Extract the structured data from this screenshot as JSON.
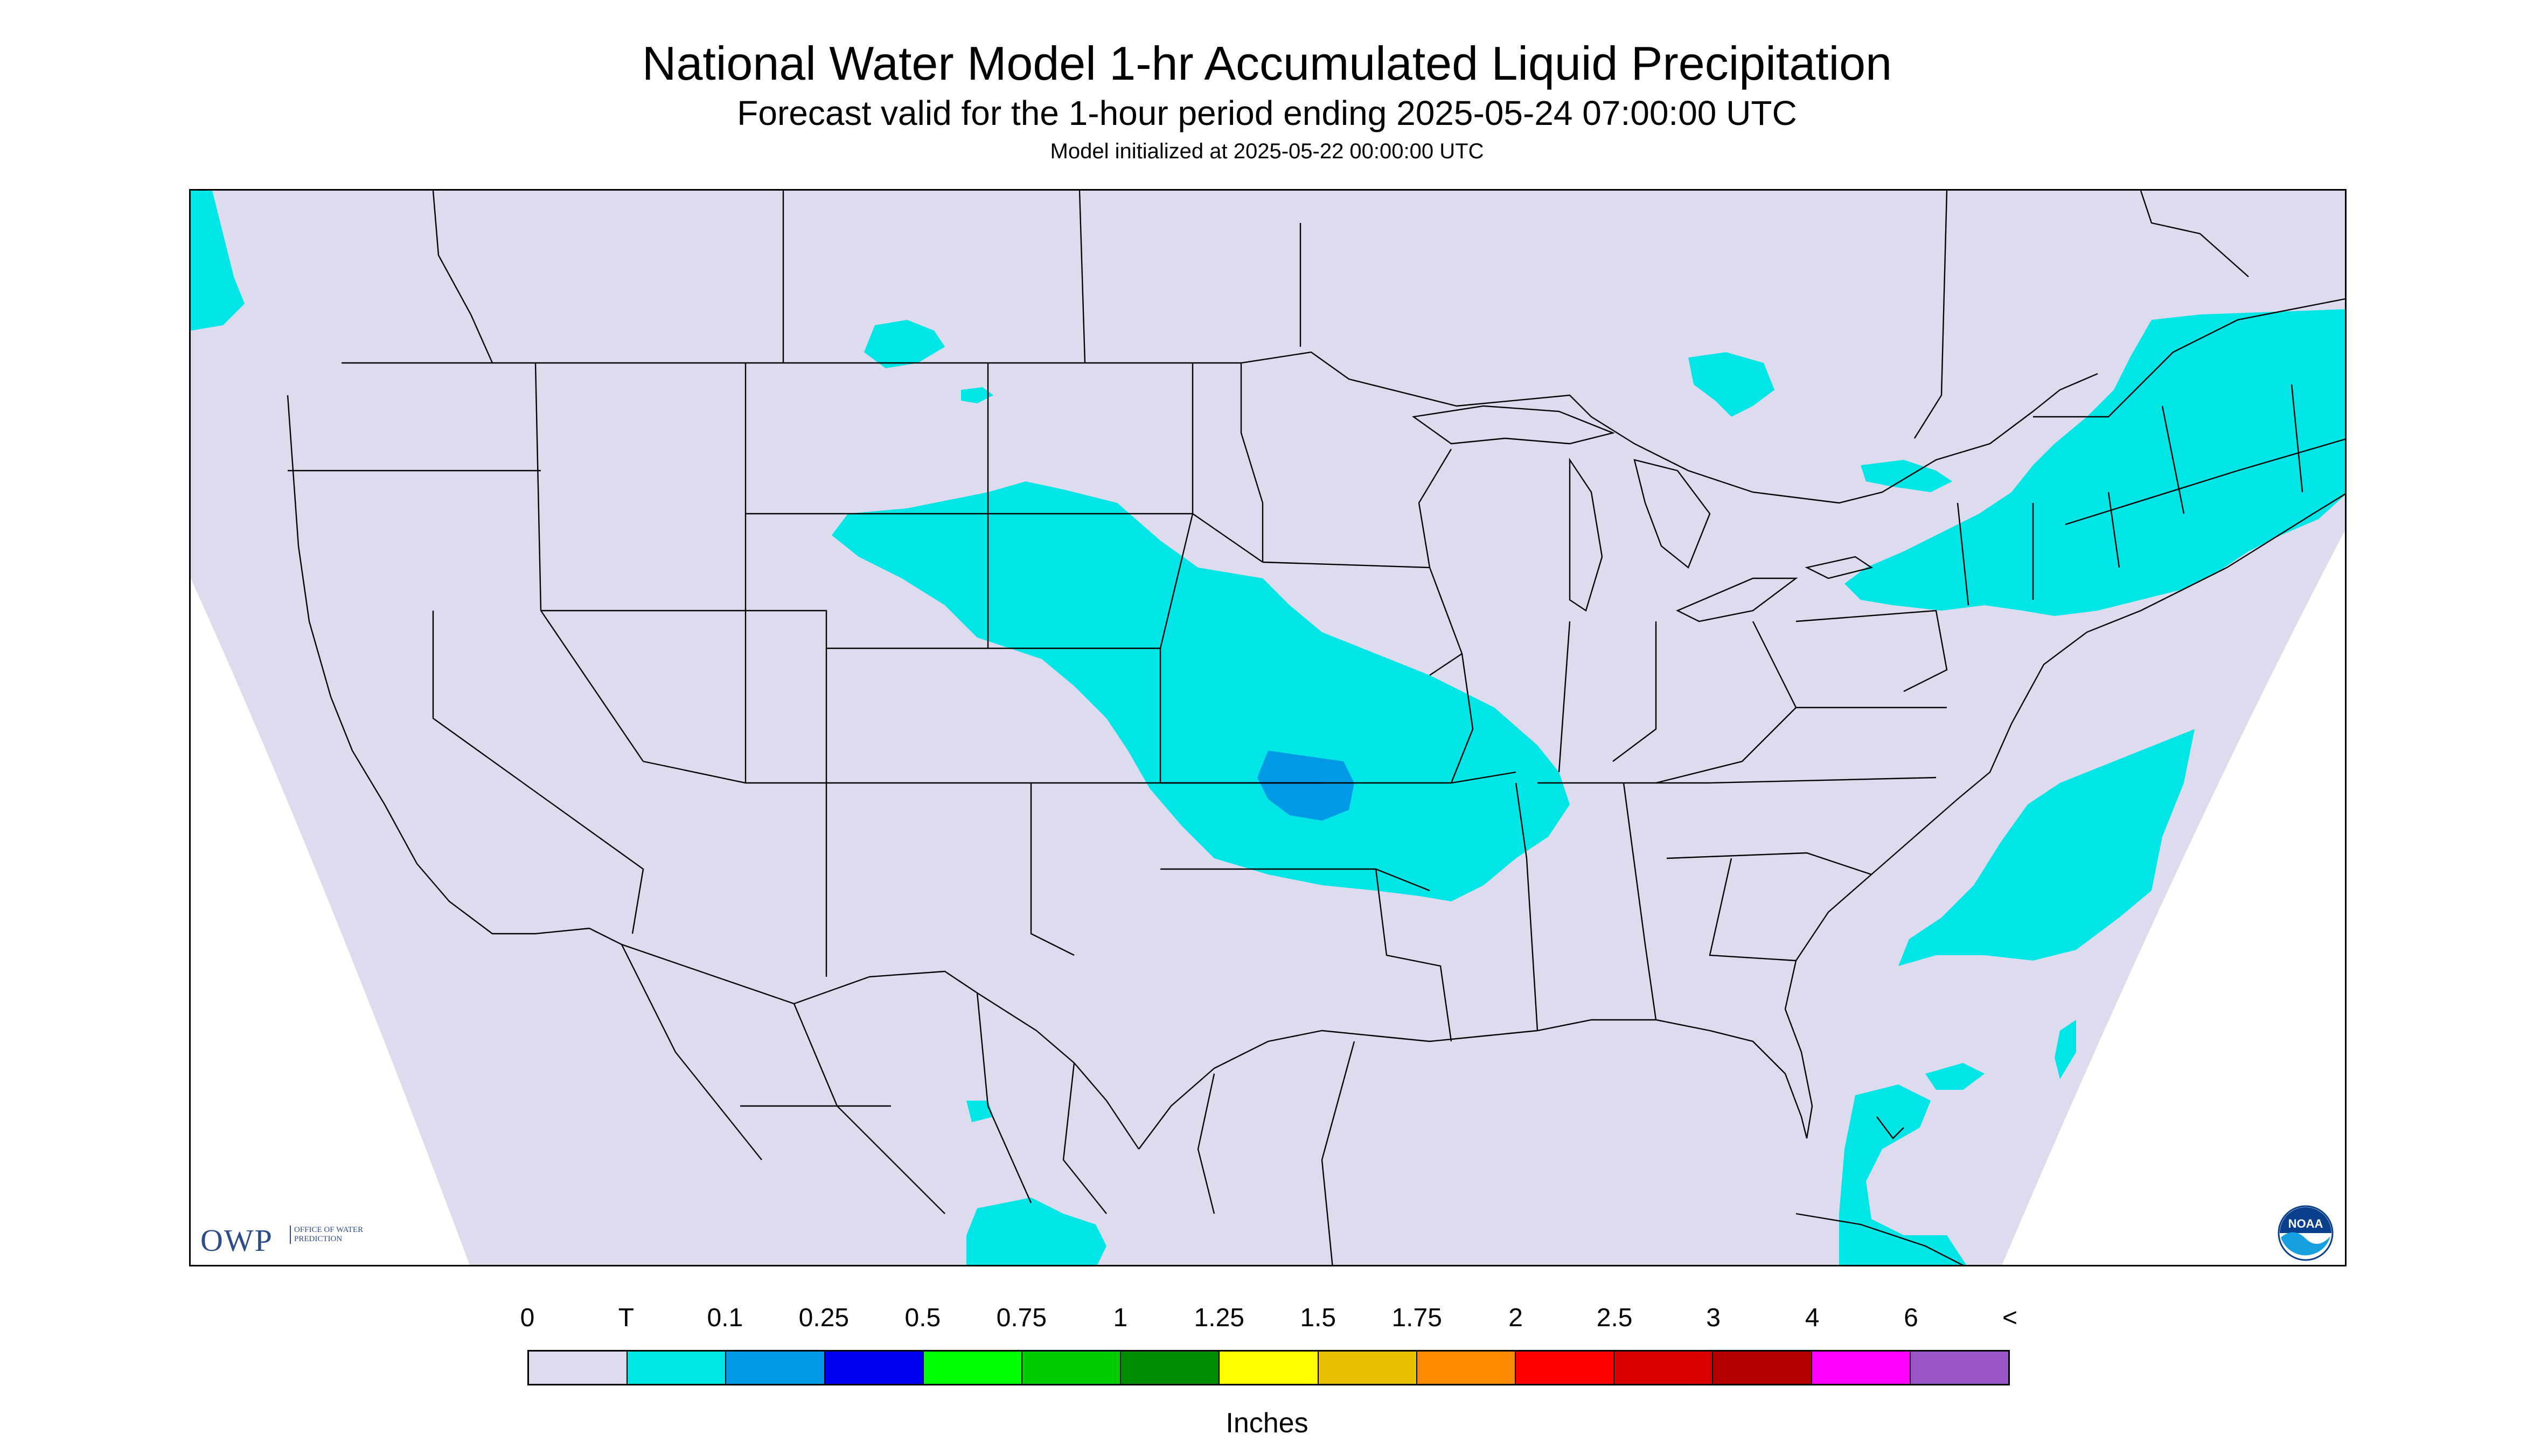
{
  "title": "National Water Model 1-hr Accumulated Liquid Precipitation",
  "subtitle": "Forecast valid for the 1-hour period ending 2025-05-24 07:00:00 UTC",
  "init_text": "Model initialized at 2025-05-22 00:00:00 UTC",
  "logos": {
    "owp": {
      "text": "OWP",
      "subtext": "OFFICE OF WATER PREDICTION",
      "icon": "owp-logo"
    },
    "noaa": {
      "text": "NOAA",
      "icon": "noaa-logo"
    }
  },
  "map": {
    "background_color": "#dcdcee",
    "outside_domain_color": "#ffffff",
    "line_color": "#000000",
    "region": "Continental United States, southern Canada, northern Mexico",
    "precip_areas": [
      {
        "label": "Central Plains band (Dakotas to Arkansas)",
        "category": "T",
        "color": "#00e5e5"
      },
      {
        "label": "Kansas-Oklahoma core",
        "category": "0.1",
        "color": "#0099e6"
      },
      {
        "label": "Northeast / Southern Ontario-Quebec",
        "category": "T",
        "color": "#00e5e5"
      },
      {
        "label": "Western Atlantic offshore",
        "category": "T",
        "color": "#00e5e5"
      },
      {
        "label": "Bahamas / Cuba north coast",
        "category": "T",
        "color": "#00e5e5"
      },
      {
        "label": "Southern Mexico",
        "category": "T",
        "color": "#00e5e5"
      },
      {
        "label": "Pacific Northwest coast",
        "category": "T",
        "color": "#00e5e5"
      },
      {
        "label": "Southern Saskatchewan",
        "category": "T",
        "color": "#00e5e5"
      },
      {
        "label": "Northern Ontario",
        "category": "T",
        "color": "#00e5e5"
      }
    ]
  },
  "legend": {
    "labels": [
      "0",
      "T",
      "0.1",
      "0.25",
      "0.5",
      "0.75",
      "1",
      "1.25",
      "1.5",
      "1.75",
      "2",
      "2.5",
      "3",
      "4",
      "6",
      "<"
    ],
    "colors": [
      "#dcdcee",
      "#00e5e5",
      "#0099e6",
      "#0000f0",
      "#00ff00",
      "#00cc00",
      "#008c00",
      "#ffff00",
      "#e6c000",
      "#ff8c00",
      "#ff0000",
      "#d90000",
      "#b30000",
      "#ff00ff",
      "#9954c8"
    ],
    "units": "Inches"
  }
}
